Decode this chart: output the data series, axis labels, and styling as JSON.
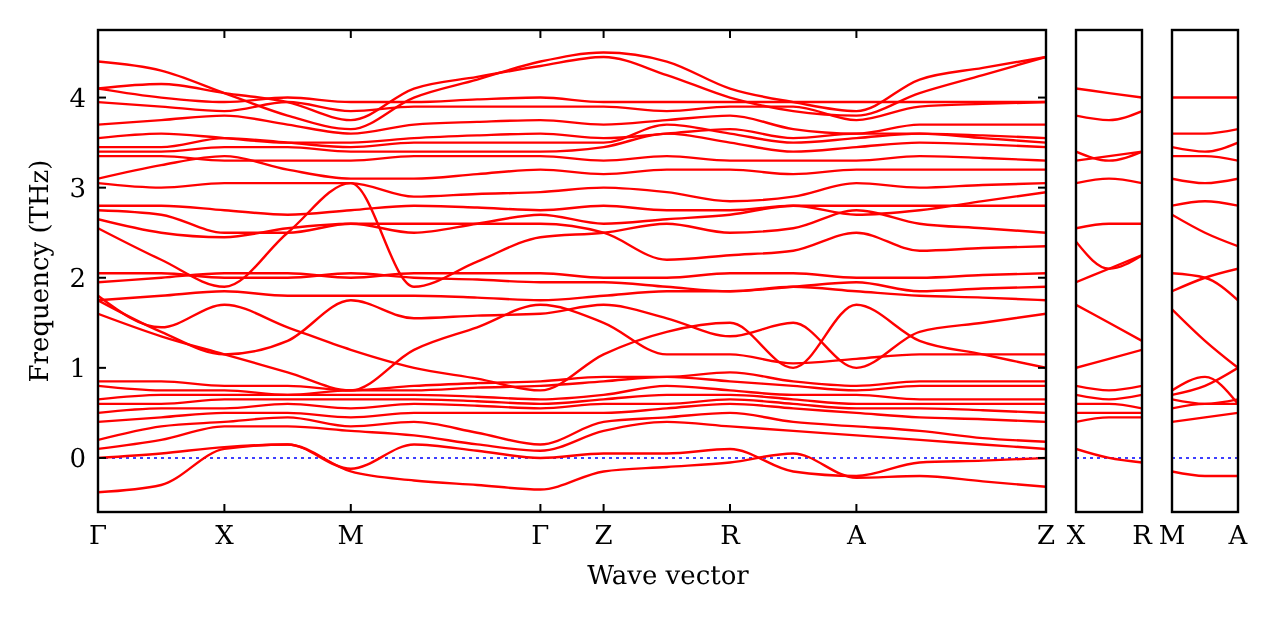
{
  "chart_data": [
    {
      "type": "line",
      "xlabel": "Wave vector",
      "ylabel": "Frequency (THz)",
      "ylim": [
        -0.6,
        4.75
      ],
      "yticks": [
        0,
        1,
        2,
        3,
        4
      ],
      "categories": [
        "Γ",
        null,
        "X",
        null,
        "M",
        null,
        null,
        "Γ",
        "Z",
        null,
        "R",
        null,
        "A",
        null,
        null,
        "Z"
      ],
      "grid": false,
      "line_style": "solid",
      "marker": "none",
      "ref_lines": [
        {
          "axis": "y",
          "value": 0,
          "color": "#0000ff",
          "line_style": "dotted"
        }
      ],
      "series": [
        {
          "color": "#ff0000",
          "values": [
            -0.38,
            -0.3,
            0.1,
            0.15,
            -0.15,
            -0.25,
            -0.3,
            -0.35,
            -0.15,
            -0.1,
            -0.05,
            0.05,
            -0.22,
            -0.2,
            -0.26,
            -0.32
          ]
        },
        {
          "color": "#ff0000",
          "values": [
            0,
            0.05,
            0.12,
            0.15,
            -0.12,
            0.15,
            0.08,
            0,
            0.05,
            0.05,
            0.1,
            -0.15,
            -0.2,
            -0.05,
            -0.03,
            0
          ]
        },
        {
          "color": "#ff0000",
          "values": [
            0.1,
            0.2,
            0.35,
            0.35,
            0.3,
            0.25,
            0.15,
            0.08,
            0.3,
            0.4,
            0.35,
            0.3,
            0.25,
            0.2,
            0.15,
            0.1
          ]
        },
        {
          "color": "#ff0000",
          "values": [
            0.2,
            0.35,
            0.4,
            0.45,
            0.35,
            0.4,
            0.28,
            0.15,
            0.4,
            0.45,
            0.5,
            0.4,
            0.35,
            0.3,
            0.22,
            0.18
          ]
        },
        {
          "color": "#ff0000",
          "values": [
            0.4,
            0.45,
            0.5,
            0.5,
            0.45,
            0.5,
            0.5,
            0.5,
            0.5,
            0.55,
            0.6,
            0.55,
            0.5,
            0.45,
            0.43,
            0.4
          ]
        },
        {
          "color": "#ff0000",
          "values": [
            0.5,
            0.55,
            0.55,
            0.6,
            0.55,
            0.6,
            0.58,
            0.55,
            0.6,
            0.6,
            0.65,
            0.6,
            0.55,
            0.55,
            0.53,
            0.5
          ]
        },
        {
          "color": "#ff0000",
          "values": [
            0.6,
            0.6,
            0.65,
            0.65,
            0.65,
            0.65,
            0.63,
            0.6,
            0.65,
            0.7,
            0.7,
            0.65,
            0.6,
            0.6,
            0.6,
            0.6
          ]
        },
        {
          "color": "#ff0000",
          "values": [
            0.65,
            0.7,
            0.7,
            0.7,
            0.7,
            0.7,
            0.68,
            0.65,
            0.7,
            0.8,
            0.75,
            0.7,
            0.7,
            0.65,
            0.65,
            0.65
          ]
        },
        {
          "color": "#ff0000",
          "values": [
            0.8,
            0.75,
            0.75,
            0.7,
            0.75,
            0.75,
            0.78,
            0.8,
            0.85,
            0.9,
            0.85,
            0.8,
            0.75,
            0.8,
            0.8,
            0.8
          ]
        },
        {
          "color": "#ff0000",
          "values": [
            0.85,
            0.85,
            0.8,
            0.8,
            0.75,
            0.8,
            0.83,
            0.85,
            0.9,
            0.9,
            0.95,
            0.85,
            0.8,
            0.85,
            0.85,
            0.85
          ]
        },
        {
          "color": "#ff0000",
          "values": [
            1.8,
            1.45,
            1.7,
            1.45,
            1.2,
            1,
            0.88,
            0.75,
            1.15,
            1.4,
            1.5,
            1,
            1.7,
            1.3,
            1.15,
            1
          ]
        },
        {
          "color": "#ff0000",
          "values": [
            1.75,
            1.4,
            1.15,
            1.3,
            1.75,
            1.55,
            1.58,
            1.6,
            1.7,
            1.55,
            1.35,
            1.5,
            1,
            1.4,
            1.5,
            1.6
          ]
        },
        {
          "color": "#ff0000",
          "values": [
            1.6,
            1.35,
            1.15,
            0.95,
            0.75,
            1.2,
            1.45,
            1.7,
            1.5,
            1.15,
            1.15,
            1.05,
            1.1,
            1.15,
            1.15,
            1.15
          ]
        },
        {
          "color": "#ff0000",
          "values": [
            1.95,
            2,
            2.05,
            2.05,
            2,
            2.05,
            2.05,
            2.05,
            2,
            2,
            2.05,
            2.05,
            2,
            2,
            2.03,
            2.05
          ]
        },
        {
          "color": "#ff0000",
          "values": [
            2.05,
            2.05,
            2,
            2,
            2.05,
            2,
            1.98,
            1.95,
            1.95,
            1.9,
            1.85,
            1.9,
            1.95,
            1.85,
            1.88,
            1.9
          ]
        },
        {
          "color": "#ff0000",
          "values": [
            1.75,
            1.8,
            1.85,
            1.8,
            1.8,
            1.8,
            1.78,
            1.75,
            1.8,
            1.85,
            1.85,
            1.9,
            1.85,
            1.8,
            1.78,
            1.75
          ]
        },
        {
          "color": "#ff0000",
          "values": [
            2.55,
            2.2,
            1.9,
            2.5,
            3.05,
            1.9,
            2.18,
            2.45,
            2.5,
            2.6,
            2.5,
            2.55,
            2.75,
            2.6,
            2.55,
            2.5
          ]
        },
        {
          "color": "#ff0000",
          "values": [
            2.65,
            2.5,
            2.45,
            2.55,
            2.6,
            2.6,
            2.6,
            2.6,
            2.5,
            2.2,
            2.25,
            2.3,
            2.5,
            2.3,
            2.33,
            2.35
          ]
        },
        {
          "color": "#ff0000",
          "values": [
            2.75,
            2.7,
            2.5,
            2.5,
            2.6,
            2.5,
            2.6,
            2.7,
            2.6,
            2.65,
            2.7,
            2.8,
            2.7,
            2.75,
            2.85,
            2.95
          ]
        },
        {
          "color": "#ff0000",
          "values": [
            2.8,
            2.8,
            2.75,
            2.7,
            2.75,
            2.8,
            2.78,
            2.75,
            2.8,
            2.75,
            2.75,
            2.8,
            2.8,
            2.8,
            2.8,
            2.8
          ]
        },
        {
          "color": "#ff0000",
          "values": [
            3.05,
            3,
            3.05,
            3.05,
            3.05,
            2.9,
            2.93,
            2.95,
            3,
            2.95,
            2.85,
            2.9,
            3.05,
            3,
            3.03,
            3.05
          ]
        },
        {
          "color": "#ff0000",
          "values": [
            3.1,
            3.25,
            3.35,
            3.2,
            3.1,
            3.1,
            3.15,
            3.2,
            3.15,
            3.2,
            3.2,
            3.15,
            3.2,
            3.2,
            3.2,
            3.2
          ]
        },
        {
          "color": "#ff0000",
          "values": [
            3.35,
            3.35,
            3.3,
            3.3,
            3.3,
            3.35,
            3.35,
            3.35,
            3.3,
            3.35,
            3.3,
            3.3,
            3.3,
            3.35,
            3.33,
            3.3
          ]
        },
        {
          "color": "#ff0000",
          "values": [
            3.4,
            3.4,
            3.45,
            3.45,
            3.4,
            3.4,
            3.4,
            3.4,
            3.45,
            3.6,
            3.5,
            3.4,
            3.45,
            3.5,
            3.48,
            3.45
          ]
        },
        {
          "color": "#ff0000",
          "values": [
            3.45,
            3.45,
            3.55,
            3.5,
            3.45,
            3.5,
            3.5,
            3.5,
            3.5,
            3.7,
            3.6,
            3.5,
            3.55,
            3.6,
            3.55,
            3.5
          ]
        },
        {
          "color": "#ff0000",
          "values": [
            3.55,
            3.6,
            3.55,
            3.5,
            3.5,
            3.55,
            3.58,
            3.6,
            3.55,
            3.6,
            3.65,
            3.55,
            3.6,
            3.6,
            3.58,
            3.55
          ]
        },
        {
          "color": "#ff0000",
          "values": [
            3.7,
            3.75,
            3.8,
            3.7,
            3.6,
            3.7,
            3.73,
            3.75,
            3.7,
            3.75,
            3.8,
            3.65,
            3.6,
            3.7,
            3.7,
            3.7
          ]
        },
        {
          "color": "#ff0000",
          "values": [
            3.95,
            3.9,
            3.85,
            3.95,
            3.85,
            3.9,
            3.9,
            3.9,
            3.9,
            3.85,
            3.9,
            3.9,
            3.75,
            3.9,
            3.93,
            3.95
          ]
        },
        {
          "color": "#ff0000",
          "values": [
            4.1,
            4,
            3.95,
            4,
            3.95,
            3.95,
            3.98,
            4,
            3.95,
            3.95,
            3.95,
            3.95,
            3.95,
            3.95,
            3.95,
            3.95
          ]
        },
        {
          "color": "#ff0000",
          "values": [
            4.1,
            4.15,
            4.05,
            3.95,
            3.75,
            4.1,
            4.23,
            4.35,
            4.45,
            4.25,
            4,
            3.85,
            3.8,
            4.05,
            4.25,
            4.45
          ]
        },
        {
          "color": "#ff0000",
          "values": [
            4.4,
            4.3,
            4.05,
            3.8,
            3.65,
            4,
            4.2,
            4.4,
            4.5,
            4.4,
            4.1,
            3.95,
            3.85,
            4.2,
            4.33,
            4.45
          ]
        }
      ]
    },
    {
      "type": "line",
      "ylim": [
        -0.6,
        4.75
      ],
      "tick_labels": "x",
      "categories": [
        "X",
        null,
        "R"
      ],
      "grid": false,
      "line_style": "solid",
      "marker": "none",
      "ref_lines": [
        {
          "axis": "y",
          "value": 0,
          "color": "#0000ff",
          "line_style": "dotted"
        }
      ],
      "series": [
        {
          "color": "#ff0000",
          "values": [
            0.1,
            0,
            -0.05
          ]
        },
        {
          "color": "#ff0000",
          "values": [
            0.4,
            0.45,
            0.45
          ]
        },
        {
          "color": "#ff0000",
          "values": [
            0.5,
            0.5,
            0.5
          ]
        },
        {
          "color": "#ff0000",
          "values": [
            0.6,
            0.6,
            0.55
          ]
        },
        {
          "color": "#ff0000",
          "values": [
            0.7,
            0.65,
            0.7
          ]
        },
        {
          "color": "#ff0000",
          "values": [
            0.8,
            0.75,
            0.8
          ]
        },
        {
          "color": "#ff0000",
          "values": [
            1,
            1.1,
            1.2
          ]
        },
        {
          "color": "#ff0000",
          "values": [
            1.7,
            1.5,
            1.3
          ]
        },
        {
          "color": "#ff0000",
          "values": [
            2.4,
            2.1,
            2.25
          ]
        },
        {
          "color": "#ff0000",
          "values": [
            1.95,
            2.1,
            2.25
          ]
        },
        {
          "color": "#ff0000",
          "values": [
            2.55,
            2.6,
            2.6
          ]
        },
        {
          "color": "#ff0000",
          "values": [
            3.05,
            3.1,
            3.05
          ]
        },
        {
          "color": "#ff0000",
          "values": [
            3.3,
            3.35,
            3.4
          ]
        },
        {
          "color": "#ff0000",
          "values": [
            3.4,
            3.3,
            3.4
          ]
        },
        {
          "color": "#ff0000",
          "values": [
            3.8,
            3.75,
            3.85
          ]
        },
        {
          "color": "#ff0000",
          "values": [
            4.1,
            4.05,
            4
          ]
        }
      ]
    },
    {
      "type": "line",
      "ylim": [
        -0.6,
        4.75
      ],
      "tick_labels": "x",
      "categories": [
        "M",
        null,
        "A"
      ],
      "grid": false,
      "line_style": "solid",
      "marker": "none",
      "ref_lines": [
        {
          "axis": "y",
          "value": 0,
          "color": "#0000ff",
          "line_style": "dotted"
        }
      ],
      "series": [
        {
          "color": "#ff0000",
          "values": [
            -0.15,
            -0.2,
            -0.2
          ]
        },
        {
          "color": "#ff0000",
          "values": [
            0.4,
            0.45,
            0.5
          ]
        },
        {
          "color": "#ff0000",
          "values": [
            0.55,
            0.6,
            0.6
          ]
        },
        {
          "color": "#ff0000",
          "values": [
            0.65,
            0.6,
            0.65
          ]
        },
        {
          "color": "#ff0000",
          "values": [
            0.7,
            0.8,
            1
          ]
        },
        {
          "color": "#ff0000",
          "values": [
            0.75,
            0.9,
            0.6
          ]
        },
        {
          "color": "#ff0000",
          "values": [
            1.65,
            1.3,
            1
          ]
        },
        {
          "color": "#ff0000",
          "values": [
            1.85,
            2,
            2.1
          ]
        },
        {
          "color": "#ff0000",
          "values": [
            2.05,
            2,
            1.75
          ]
        },
        {
          "color": "#ff0000",
          "values": [
            2.7,
            2.5,
            2.35
          ]
        },
        {
          "color": "#ff0000",
          "values": [
            2.8,
            2.85,
            2.8
          ]
        },
        {
          "color": "#ff0000",
          "values": [
            3.1,
            3.05,
            3.1
          ]
        },
        {
          "color": "#ff0000",
          "values": [
            3.35,
            3.35,
            3.3
          ]
        },
        {
          "color": "#ff0000",
          "values": [
            3.45,
            3.4,
            3.5
          ]
        },
        {
          "color": "#ff0000",
          "values": [
            3.6,
            3.6,
            3.65
          ]
        },
        {
          "color": "#ff0000",
          "values": [
            4,
            4,
            4
          ]
        }
      ]
    }
  ]
}
